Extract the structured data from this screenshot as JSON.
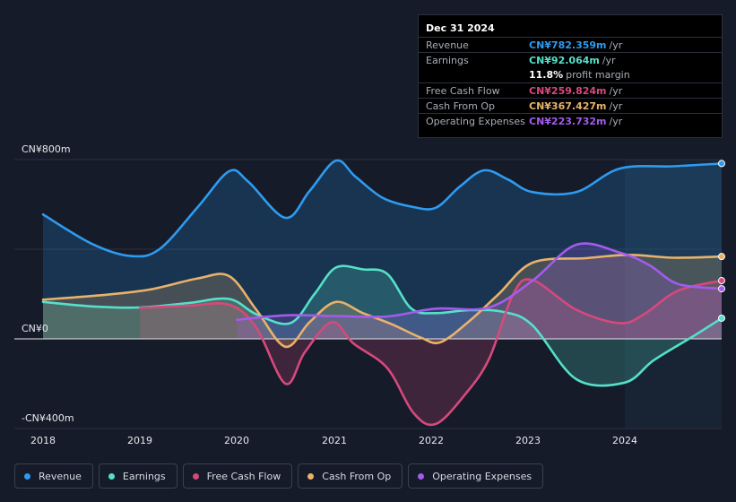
{
  "chart_data": {
    "type": "area",
    "title": "",
    "y_unit_note": "CN¥ millions",
    "y_tick_labels": [
      "CN¥800m",
      "CN¥0",
      "-CN¥400m"
    ],
    "ylim": [
      -400,
      800
    ],
    "xlim": [
      2018,
      2025
    ],
    "x_tick_labels": [
      "2018",
      "2019",
      "2020",
      "2021",
      "2022",
      "2023",
      "2024"
    ],
    "x_ticks": [
      2018,
      2019,
      2020,
      2021,
      2022,
      2023,
      2024
    ],
    "forecast_start": 2024,
    "series": [
      {
        "name": "Revenue",
        "color": "#2e9bf0",
        "points": [
          [
            2018,
            555
          ],
          [
            2018.5,
            425
          ],
          [
            2018.9,
            370
          ],
          [
            2019.2,
            400
          ],
          [
            2019.6,
            590
          ],
          [
            2019.92,
            748
          ],
          [
            2020.12,
            700
          ],
          [
            2020.5,
            540
          ],
          [
            2020.75,
            660
          ],
          [
            2021.02,
            795
          ],
          [
            2021.22,
            725
          ],
          [
            2021.5,
            630
          ],
          [
            2021.8,
            590
          ],
          [
            2022.05,
            585
          ],
          [
            2022.3,
            680
          ],
          [
            2022.55,
            752
          ],
          [
            2022.8,
            710
          ],
          [
            2023.05,
            655
          ],
          [
            2023.5,
            655
          ],
          [
            2023.95,
            760
          ],
          [
            2024.5,
            770
          ],
          [
            2025,
            782.359
          ]
        ]
      },
      {
        "name": "Earnings",
        "color": "#55e0c9",
        "points": [
          [
            2018,
            165
          ],
          [
            2018.5,
            145
          ],
          [
            2019,
            140
          ],
          [
            2019.5,
            160
          ],
          [
            2019.92,
            178
          ],
          [
            2020.2,
            110
          ],
          [
            2020.55,
            70
          ],
          [
            2020.8,
            200
          ],
          [
            2021.02,
            318
          ],
          [
            2021.3,
            310
          ],
          [
            2021.55,
            290
          ],
          [
            2021.8,
            135
          ],
          [
            2022.05,
            115
          ],
          [
            2022.4,
            128
          ],
          [
            2022.75,
            120
          ],
          [
            2023.05,
            60
          ],
          [
            2023.5,
            -180
          ],
          [
            2024,
            -195
          ],
          [
            2024.3,
            -95
          ],
          [
            2024.7,
            10
          ],
          [
            2025,
            92.064
          ]
        ]
      },
      {
        "name": "Free Cash Flow",
        "color": "#d6497d",
        "points": [
          [
            2019,
            138
          ],
          [
            2019.5,
            148
          ],
          [
            2019.92,
            152
          ],
          [
            2020.2,
            50
          ],
          [
            2020.5,
            -200
          ],
          [
            2020.7,
            -60
          ],
          [
            2020.98,
            75
          ],
          [
            2021.2,
            -20
          ],
          [
            2021.55,
            -130
          ],
          [
            2021.82,
            -330
          ],
          [
            2022.05,
            -380
          ],
          [
            2022.35,
            -250
          ],
          [
            2022.6,
            -90
          ],
          [
            2022.85,
            200
          ],
          [
            2023.05,
            262
          ],
          [
            2023.5,
            130
          ],
          [
            2023.95,
            70
          ],
          [
            2024.2,
            110
          ],
          [
            2024.55,
            215
          ],
          [
            2025,
            259.824
          ]
        ]
      },
      {
        "name": "Cash From Op",
        "color": "#e8b26b",
        "points": [
          [
            2018,
            175
          ],
          [
            2018.6,
            195
          ],
          [
            2019.1,
            220
          ],
          [
            2019.6,
            270
          ],
          [
            2019.92,
            280
          ],
          [
            2020.2,
            130
          ],
          [
            2020.5,
            -35
          ],
          [
            2020.75,
            75
          ],
          [
            2021.02,
            165
          ],
          [
            2021.3,
            115
          ],
          [
            2021.6,
            65
          ],
          [
            2021.9,
            5
          ],
          [
            2022.1,
            -15
          ],
          [
            2022.4,
            80
          ],
          [
            2022.7,
            200
          ],
          [
            2023.05,
            340
          ],
          [
            2023.6,
            360
          ],
          [
            2024.05,
            375
          ],
          [
            2024.5,
            362
          ],
          [
            2025,
            367.427
          ]
        ]
      },
      {
        "name": "Operating Expenses",
        "color": "#a45bec",
        "points": [
          [
            2020,
            85
          ],
          [
            2020.5,
            105
          ],
          [
            2021,
            102
          ],
          [
            2021.55,
            100
          ],
          [
            2022.05,
            135
          ],
          [
            2022.6,
            140
          ],
          [
            2023.05,
            260
          ],
          [
            2023.5,
            420
          ],
          [
            2023.95,
            385
          ],
          [
            2024.25,
            330
          ],
          [
            2024.55,
            245
          ],
          [
            2025,
            223.732
          ]
        ]
      }
    ]
  },
  "tooltip": {
    "date": "Dec 31 2024",
    "rows": [
      {
        "label": "Revenue",
        "value": "CN¥782.359m",
        "unit": "/yr",
        "color": "#2e9bf0"
      },
      {
        "label": "Earnings",
        "value": "CN¥92.064m",
        "unit": "/yr",
        "color": "#55e0c9"
      },
      {
        "label": "Free Cash Flow",
        "value": "CN¥259.824m",
        "unit": "/yr",
        "color": "#d6497d"
      },
      {
        "label": "Cash From Op",
        "value": "CN¥367.427m",
        "unit": "/yr",
        "color": "#e8b26b"
      },
      {
        "label": "Operating Expenses",
        "value": "CN¥223.732m",
        "unit": "/yr",
        "color": "#a45bec"
      }
    ],
    "margin_value": "11.8%",
    "margin_text": "profit margin"
  },
  "legend": [
    {
      "label": "Revenue",
      "color": "#2e9bf0"
    },
    {
      "label": "Earnings",
      "color": "#55e0c9"
    },
    {
      "label": "Free Cash Flow",
      "color": "#d6497d"
    },
    {
      "label": "Cash From Op",
      "color": "#e8b26b"
    },
    {
      "label": "Operating Expenses",
      "color": "#a45bec"
    }
  ]
}
